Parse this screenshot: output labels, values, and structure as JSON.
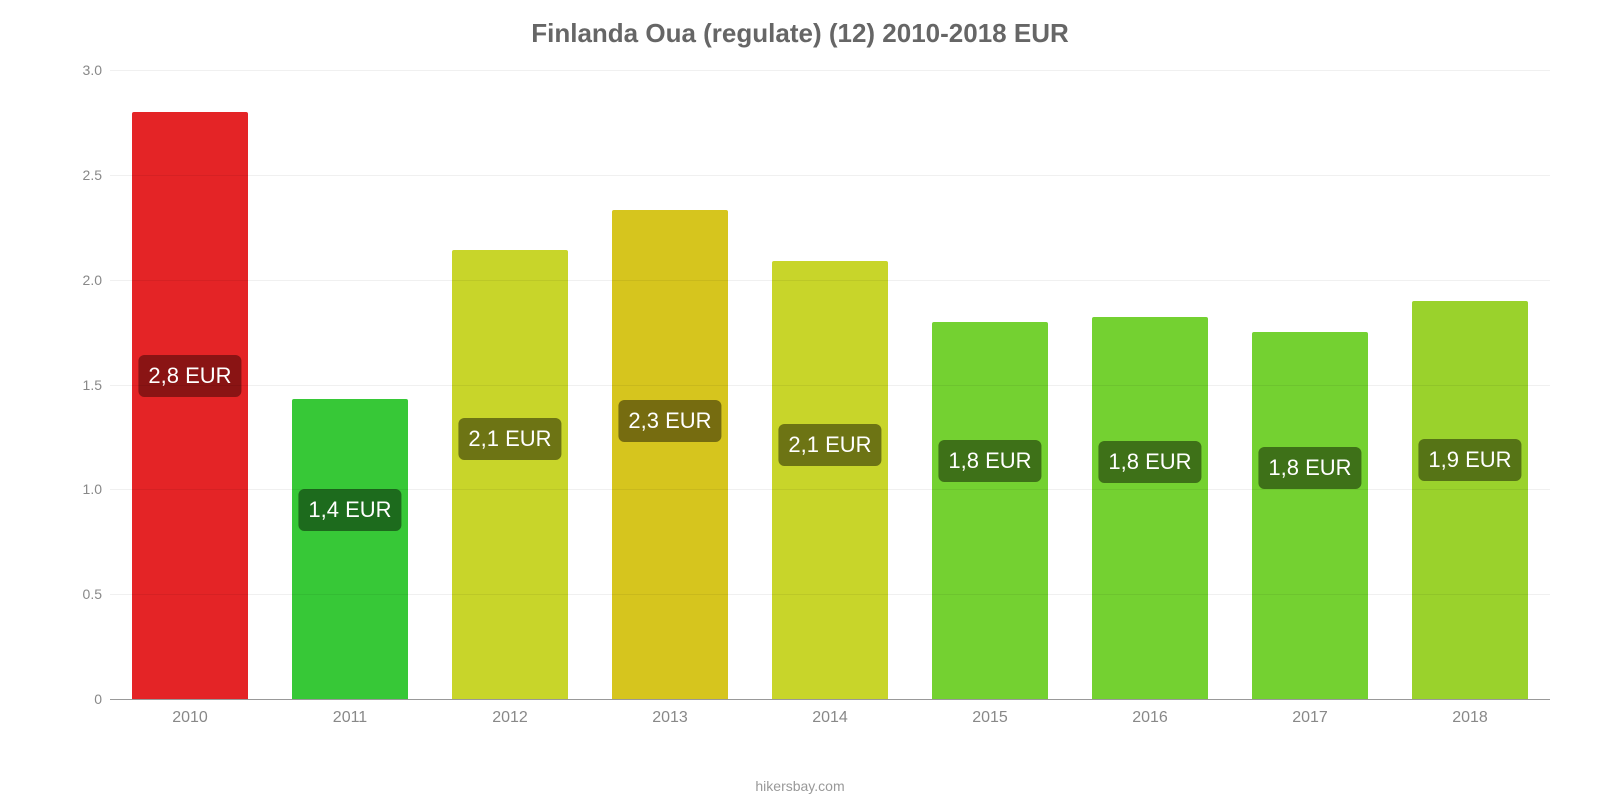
{
  "chart": {
    "type": "bar",
    "title": "Finlanda Oua (regulate) (12) 2010-2018 EUR",
    "title_fontsize": 26,
    "title_color": "#666666",
    "caption": "hikersbay.com",
    "caption_color": "#999999",
    "background_color": "#ffffff",
    "grid_color": "rgba(0,0,0,0.06)",
    "axis_color": "#999999",
    "tick_color": "#888888",
    "ylim": [
      0,
      3.0
    ],
    "yticks": [
      0,
      0.5,
      1.0,
      1.5,
      2.0,
      2.5,
      3.0
    ],
    "ytick_labels": [
      "0",
      "0.5",
      "1.0",
      "1.5",
      "2.0",
      "2.5",
      "3.0"
    ],
    "categories": [
      "2010",
      "2011",
      "2012",
      "2013",
      "2014",
      "2015",
      "2016",
      "2017",
      "2018"
    ],
    "values": [
      2.8,
      1.43,
      2.14,
      2.33,
      2.09,
      1.8,
      1.82,
      1.75,
      1.9
    ],
    "bar_colors": [
      "#e42426",
      "#37c837",
      "#c8d52a",
      "#d6c51e",
      "#c8d52a",
      "#74d131",
      "#74d131",
      "#74d131",
      "#9ad22c"
    ],
    "value_labels": [
      "2,8 EUR",
      "1,4 EUR",
      "2,1 EUR",
      "2,3 EUR",
      "2,1 EUR",
      "1,8 EUR",
      "1,8 EUR",
      "1,8 EUR",
      "1,9 EUR"
    ],
    "label_bg_colors": [
      "#8a1414",
      "#1d6b1d",
      "#6d7414",
      "#766c10",
      "#6d7414",
      "#3e7118",
      "#3e7118",
      "#3e7118",
      "#567416"
    ],
    "label_top_pct": [
      45,
      37,
      42,
      43,
      42,
      37,
      38,
      37,
      40
    ],
    "bar_width_pct": 72,
    "label_fontsize": 22
  }
}
